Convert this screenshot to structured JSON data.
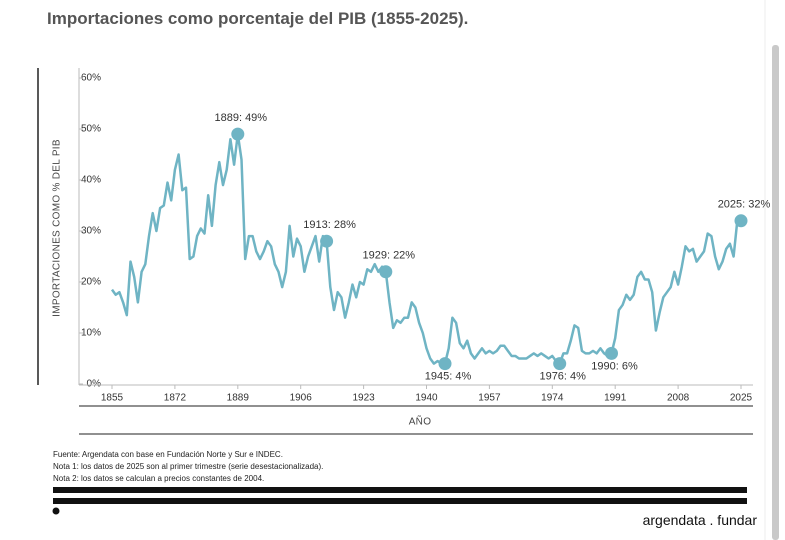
{
  "chart_data": {
    "type": "line",
    "title": "Importaciones como porcentaje del PIB (1855-2025).",
    "y_label": "IMPORTACIONES COMO % DEL PIB",
    "x_label": "AÑO",
    "color": "#6fb4c4",
    "x": [
      1855,
      1856,
      1857,
      1858,
      1859,
      1860,
      1861,
      1862,
      1863,
      1864,
      1865,
      1866,
      1867,
      1868,
      1869,
      1870,
      1871,
      1872,
      1873,
      1874,
      1875,
      1876,
      1877,
      1878,
      1879,
      1880,
      1881,
      1882,
      1883,
      1884,
      1885,
      1886,
      1887,
      1888,
      1889,
      1890,
      1891,
      1892,
      1893,
      1894,
      1895,
      1896,
      1897,
      1898,
      1899,
      1900,
      1901,
      1902,
      1903,
      1904,
      1905,
      1906,
      1907,
      1908,
      1909,
      1910,
      1911,
      1912,
      1913,
      1914,
      1915,
      1916,
      1917,
      1918,
      1919,
      1920,
      1921,
      1922,
      1923,
      1924,
      1925,
      1926,
      1927,
      1928,
      1929,
      1930,
      1931,
      1932,
      1933,
      1934,
      1935,
      1936,
      1937,
      1938,
      1939,
      1940,
      1941,
      1942,
      1943,
      1944,
      1945,
      1946,
      1947,
      1948,
      1949,
      1950,
      1951,
      1952,
      1953,
      1954,
      1955,
      1956,
      1957,
      1958,
      1959,
      1960,
      1961,
      1962,
      1963,
      1964,
      1965,
      1966,
      1967,
      1968,
      1969,
      1970,
      1971,
      1972,
      1973,
      1974,
      1975,
      1976,
      1977,
      1978,
      1979,
      1980,
      1981,
      1982,
      1983,
      1984,
      1985,
      1986,
      1987,
      1988,
      1989,
      1990,
      1991,
      1992,
      1993,
      1994,
      1995,
      1996,
      1997,
      1998,
      1999,
      2000,
      2001,
      2002,
      2003,
      2004,
      2005,
      2006,
      2007,
      2008,
      2009,
      2010,
      2011,
      2012,
      2013,
      2014,
      2015,
      2016,
      2017,
      2018,
      2019,
      2020,
      2021,
      2022,
      2023,
      2024,
      2025
    ],
    "values": [
      18.5,
      17.5,
      18,
      16,
      13.5,
      24,
      21,
      16,
      22,
      23.5,
      29,
      33.5,
      30,
      34.5,
      35,
      39.5,
      36,
      42,
      45,
      38,
      38.5,
      24.5,
      25,
      29,
      30.5,
      29.5,
      37,
      31,
      39,
      43.5,
      39,
      42,
      48,
      43,
      49,
      44,
      24.5,
      29,
      29,
      26,
      24.5,
      26,
      28,
      27,
      23.5,
      22,
      19,
      22,
      31,
      25,
      28.5,
      27,
      22,
      25,
      27,
      29,
      24,
      29,
      28,
      19,
      14.5,
      18,
      17,
      13,
      16,
      19.5,
      17,
      20,
      19.5,
      22.5,
      22,
      23.5,
      22,
      23,
      22,
      16,
      11,
      12.5,
      12,
      13,
      13,
      16,
      15,
      12,
      10,
      7,
      5,
      4,
      4.5,
      4,
      4,
      7,
      13,
      12,
      8,
      7,
      8.5,
      6,
      5,
      6,
      7,
      6,
      6.5,
      6,
      6.5,
      7.5,
      7.5,
      6.5,
      5.5,
      5.5,
      5,
      5,
      5,
      5.5,
      6,
      5.5,
      6,
      5.5,
      5,
      5.5,
      4.5,
      4,
      6,
      6,
      8.5,
      11.5,
      11,
      6.5,
      6,
      6,
      6.5,
      6,
      7,
      6,
      5.5,
      6,
      9,
      14.5,
      15.5,
      17.5,
      16.5,
      17.5,
      21,
      22,
      20.5,
      20.5,
      18,
      10.5,
      14,
      17,
      18,
      19,
      22,
      19.5,
      23,
      27,
      26,
      26.5,
      24,
      25,
      26,
      29.5,
      29,
      25,
      22.5,
      24,
      26.5,
      27.5,
      25,
      32,
      32
    ],
    "annotations": [
      {
        "text": "1889: 49%",
        "x": 1889,
        "y": 49
      },
      {
        "text": "1913: 28%",
        "x": 1913,
        "y": 28
      },
      {
        "text": "1929: 22%",
        "x": 1929,
        "y": 22
      },
      {
        "text": "1945: 4%",
        "x": 1945,
        "y": 4
      },
      {
        "text": "1976: 4%",
        "x": 1976,
        "y": 4
      },
      {
        "text": "1990: 6%",
        "x": 1990,
        "y": 6
      },
      {
        "text": "2025: 32%",
        "x": 2025,
        "y": 32
      }
    ],
    "xlim": [
      1855,
      2025
    ],
    "xticks": [
      1855,
      1872,
      1889,
      1906,
      1923,
      1940,
      1957,
      1974,
      1991,
      2008,
      2025
    ],
    "ylim": [
      0,
      60
    ],
    "yticks": [
      {
        "value": 0,
        "label": "0%"
      },
      {
        "value": 10,
        "label": "10%"
      },
      {
        "value": 20,
        "label": "20%"
      },
      {
        "value": 30,
        "label": "30%"
      },
      {
        "value": 40,
        "label": "40%"
      },
      {
        "value": 50,
        "label": "50%"
      },
      {
        "value": 60,
        "label": "60%"
      }
    ],
    "source": "Fuente: Argendata con base en Fundación Norte y Sur e INDEC.",
    "notes": [
      "Nota 1: los datos de 2025 son al primer trimestre (serie desestacionalizada).",
      "Nota 2: los datos se calculan a precios constantes de 2004."
    ],
    "logo": "argendata . fundar"
  }
}
